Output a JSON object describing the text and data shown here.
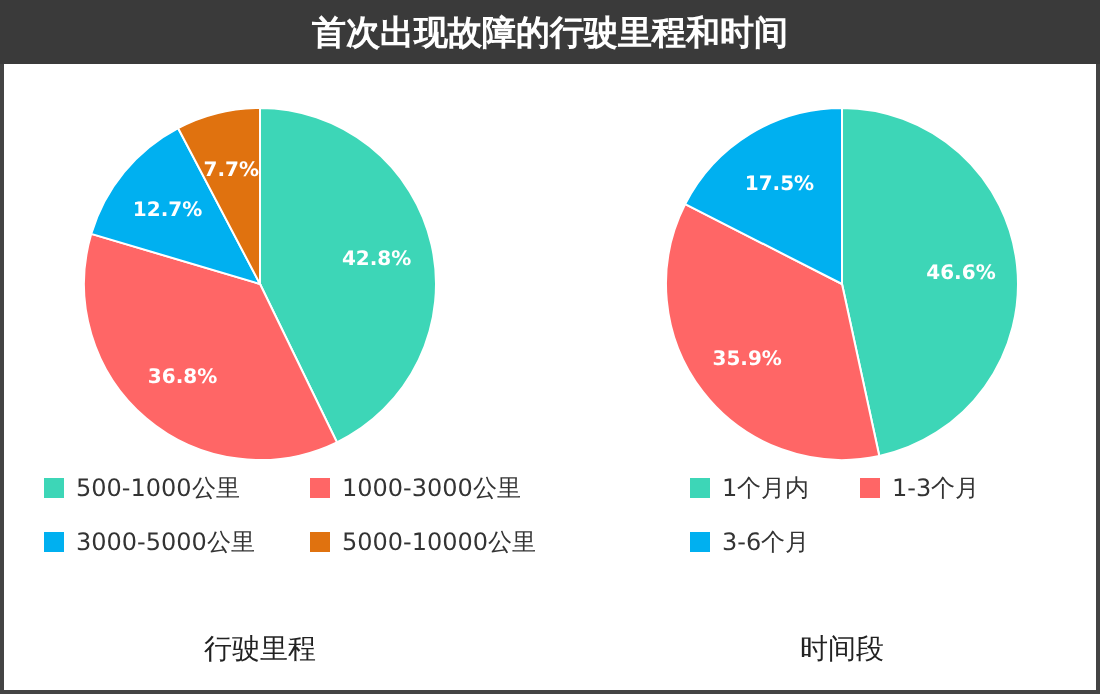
{
  "chart_data": [
    {
      "type": "pie",
      "title": "首次出现故障的行驶里程和时间",
      "xlabel": "行驶里程",
      "categories": [
        "500-1000公里",
        "1000-3000公里",
        "3000-5000公里",
        "5000-10000公里"
      ],
      "values": [
        42.8,
        36.8,
        12.7,
        7.7
      ],
      "value_labels": [
        "42.8%",
        "36.8%",
        "12.7%",
        "7.7%"
      ],
      "colors": [
        "#3dd6b7",
        "#ff6666",
        "#00b0f0",
        "#e0720f"
      ],
      "legend": "bottom"
    },
    {
      "type": "pie",
      "xlabel": "时间段",
      "categories": [
        "1个月内",
        "1-3个月",
        "3-6个月"
      ],
      "values": [
        46.6,
        35.9,
        17.5
      ],
      "value_labels": [
        "46.6%",
        "35.9%",
        "17.5%"
      ],
      "colors": [
        "#3dd6b7",
        "#ff6666",
        "#00b0f0"
      ],
      "legend": "bottom"
    }
  ]
}
